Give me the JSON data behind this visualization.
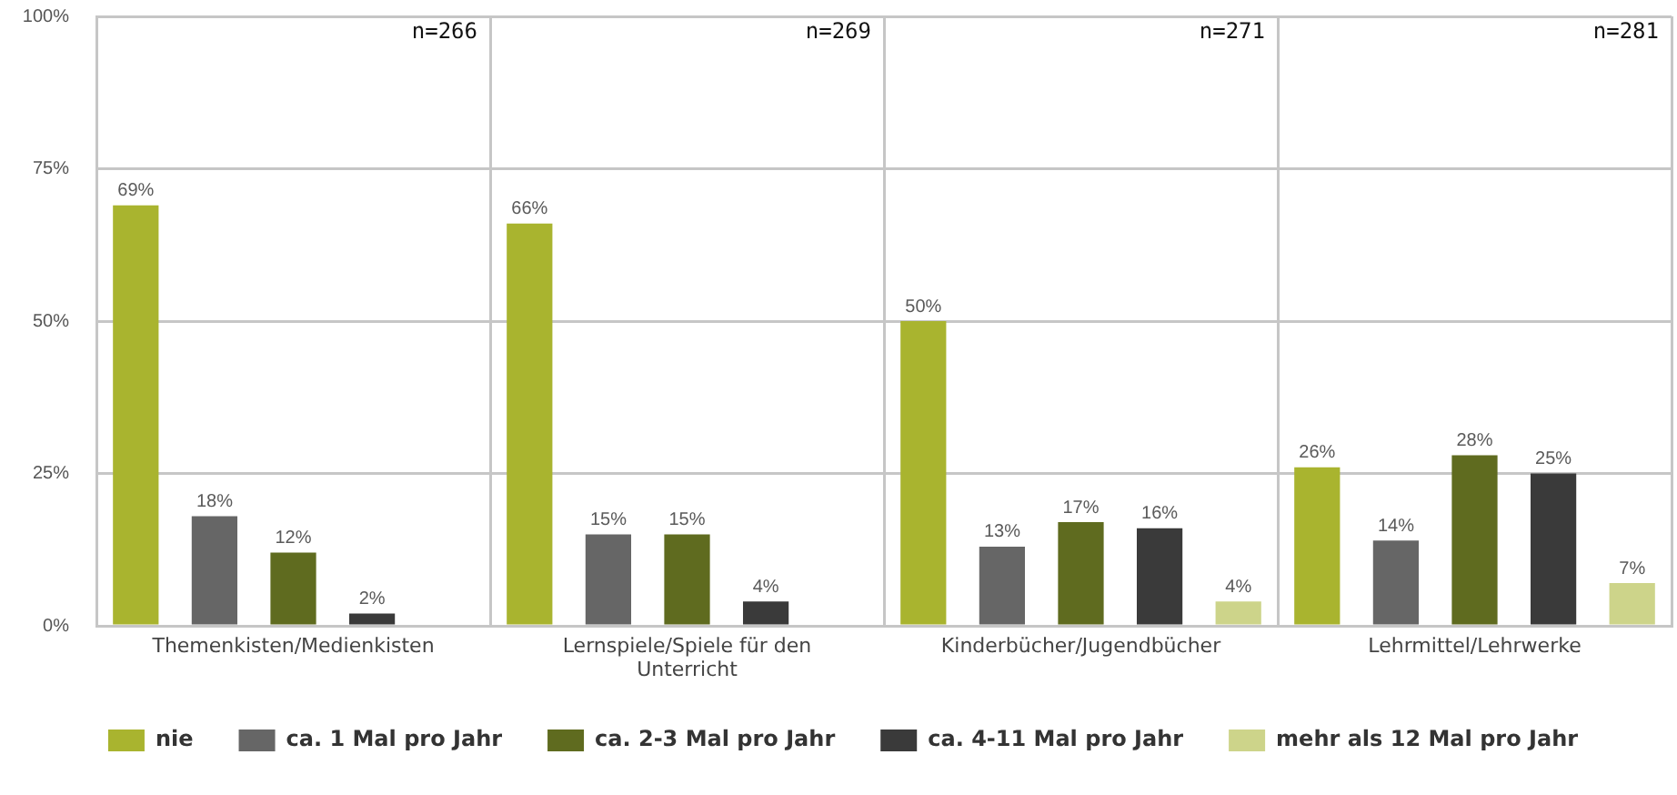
{
  "chart_data": {
    "type": "bar",
    "categories": [
      "Themenkisten/Medienkisten",
      "Lernspiele/Spiele für den Unterricht",
      "Kinderbücher/Jugendbücher",
      "Lehrmittel/Lehrwerke"
    ],
    "series": [
      {
        "name": "nie",
        "color": "#a9b42f",
        "values": [
          69,
          66,
          50,
          26
        ],
        "value_labels": [
          "69%",
          "66%",
          "50%",
          "26%"
        ]
      },
      {
        "name": "ca. 1 Mal pro Jahr",
        "color": "#666666",
        "values": [
          18,
          15,
          13,
          14
        ],
        "value_labels": [
          "18%",
          "15%",
          "13%",
          "14%"
        ]
      },
      {
        "name": "ca. 2-3 Mal pro Jahr",
        "color": "#5f6b1f",
        "values": [
          12,
          15,
          17,
          28
        ],
        "value_labels": [
          "12%",
          "15%",
          "17%",
          "28%"
        ]
      },
      {
        "name": "ca. 4-11 Mal pro Jahr",
        "color": "#3a3a3a",
        "values": [
          2,
          4,
          16,
          25
        ],
        "value_labels": [
          "2%",
          "4%",
          "16%",
          "25%"
        ]
      },
      {
        "name": "mehr als 12 Mal pro Jahr",
        "color": "#cdd48a",
        "values": [
          null,
          null,
          4,
          7
        ],
        "value_labels": [
          null,
          null,
          "4%",
          "7%"
        ]
      }
    ],
    "ylim": [
      0,
      100
    ],
    "yticks": [
      {
        "value": 0,
        "label": "0%"
      },
      {
        "value": 25,
        "label": "25%"
      },
      {
        "value": 50,
        "label": "50%"
      },
      {
        "value": 75,
        "label": "75%"
      },
      {
        "value": 100,
        "label": "100%"
      }
    ],
    "grid": true,
    "legend": "bottom",
    "annotations": [
      "n=266",
      "n=269",
      "n=271",
      "n=281"
    ]
  }
}
